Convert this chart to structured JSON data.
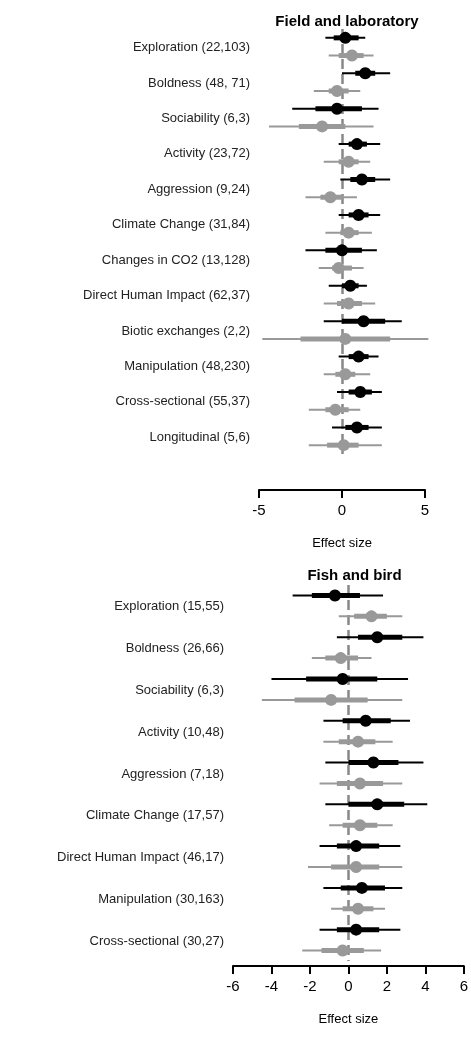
{
  "chart_data": [
    {
      "type": "box",
      "title": "Field and laboratory",
      "xlabel": "Effect size",
      "orientation": "horizontal",
      "categories": [
        "Exploration (22,103)",
        "Boldness (48, 71)",
        "Sociability (6,3)",
        "Activity (23,72)",
        "Aggression (9,24)",
        "Climate Change (31,84)",
        "Changes in CO2 (13,128)",
        "Direct Human Impact (62,37)",
        "Biotic exchanges (2,2)",
        "Manipulation (48,230)",
        "Cross-sectional (55,37)",
        "Longitudinal (5,6)"
      ],
      "series": [
        {
          "color": "#000000",
          "boxes": [
            {
              "low": -1.0,
              "q1": -0.5,
              "median": 0.2,
              "q3": 1.0,
              "high": 1.4
            },
            {
              "low": 0,
              "q1": 0.8,
              "median": 1.4,
              "q3": 2.0,
              "high": 2.9
            },
            {
              "low": -3.0,
              "q1": -1.6,
              "median": -0.3,
              "q3": 1.2,
              "high": 2.2
            },
            {
              "low": -0.2,
              "q1": 0.4,
              "median": 0.9,
              "q3": 1.5,
              "high": 2.3
            },
            {
              "low": -0.1,
              "q1": 0.5,
              "median": 1.2,
              "q3": 2.0,
              "high": 2.9
            },
            {
              "low": -0.2,
              "q1": 0.4,
              "median": 1.0,
              "q3": 1.6,
              "high": 2.3
            },
            {
              "low": -2.2,
              "q1": -1.0,
              "median": 0.0,
              "q3": 1.2,
              "high": 2.1
            },
            {
              "low": -0.8,
              "q1": 0.0,
              "median": 0.5,
              "q3": 1.0,
              "high": 1.5
            },
            {
              "low": -1.1,
              "q1": 0.0,
              "median": 1.3,
              "q3": 2.6,
              "high": 3.6
            },
            {
              "low": -0.2,
              "q1": 0.4,
              "median": 1.0,
              "q3": 1.6,
              "high": 2.2
            },
            {
              "low": -0.3,
              "q1": 0.4,
              "median": 1.1,
              "q3": 1.8,
              "high": 2.4
            },
            {
              "low": -0.6,
              "q1": 0.2,
              "median": 0.9,
              "q3": 1.6,
              "high": 2.4
            }
          ]
        },
        {
          "color": "#999999",
          "boxes": [
            {
              "low": -0.8,
              "q1": -0.2,
              "median": 0.6,
              "q3": 1.3,
              "high": 1.9
            },
            {
              "low": -1.7,
              "q1": -0.8,
              "median": -0.3,
              "q3": 0.4,
              "high": 1.1
            },
            {
              "low": -4.4,
              "q1": -2.6,
              "median": -1.2,
              "q3": 0.2,
              "high": 1.9
            },
            {
              "low": -1.1,
              "q1": -0.2,
              "median": 0.4,
              "q3": 1.0,
              "high": 1.7
            },
            {
              "low": -2.2,
              "q1": -1.3,
              "median": -0.7,
              "q3": 0.1,
              "high": 0.9
            },
            {
              "low": -1.0,
              "q1": -0.1,
              "median": 0.4,
              "q3": 1.0,
              "high": 1.8
            },
            {
              "low": -1.4,
              "q1": -0.6,
              "median": -0.2,
              "q3": 0.6,
              "high": 1.3
            },
            {
              "low": -1.1,
              "q1": -0.3,
              "median": 0.4,
              "q3": 1.2,
              "high": 2.0
            },
            {
              "low": -4.8,
              "q1": -2.5,
              "median": 0.2,
              "q3": 2.9,
              "high": 5.2
            },
            {
              "low": -1.1,
              "q1": -0.4,
              "median": 0.2,
              "q3": 0.8,
              "high": 1.7
            },
            {
              "low": -2.0,
              "q1": -1.0,
              "median": -0.4,
              "q3": 0.4,
              "high": 1.1
            },
            {
              "low": -2.0,
              "q1": -0.9,
              "median": 0.1,
              "q3": 1.0,
              "high": 2.4
            }
          ]
        }
      ],
      "xlim": [
        -5,
        5
      ],
      "xticks": [
        -5,
        0,
        5
      ],
      "ref_lines": [
        {
          "axis": "x",
          "value": 0,
          "color": "#888888",
          "line_style": "dashed"
        }
      ]
    },
    {
      "type": "box",
      "title": "Fish and bird",
      "xlabel": "Effect size",
      "orientation": "horizontal",
      "categories": [
        "Exploration (15,55)",
        "Boldness (26,66)",
        "Sociability (6,3)",
        "Activity (10,48)",
        "Aggression (7,18)",
        "Climate Change (17,57)",
        "Direct Human Impact (46,17)",
        "Manipulation (30,163)",
        "Cross-sectional (30,27)"
      ],
      "series": [
        {
          "color": "#000000",
          "boxes": [
            {
              "low": -2.9,
              "q1": -1.9,
              "median": -0.7,
              "q3": 0.6,
              "high": 1.8
            },
            {
              "low": -0.6,
              "q1": 0.5,
              "median": 1.5,
              "q3": 2.8,
              "high": 3.9
            },
            {
              "low": -4.0,
              "q1": -2.2,
              "median": -0.3,
              "q3": 1.5,
              "high": 3.1
            },
            {
              "low": -1.3,
              "q1": -0.3,
              "median": 0.9,
              "q3": 2.2,
              "high": 3.2
            },
            {
              "low": -1.2,
              "q1": 0.0,
              "median": 1.3,
              "q3": 2.6,
              "high": 3.9
            },
            {
              "low": -1.2,
              "q1": 0.0,
              "median": 1.5,
              "q3": 2.9,
              "high": 4.1
            },
            {
              "low": -1.5,
              "q1": -0.6,
              "median": 0.4,
              "q3": 1.6,
              "high": 2.7
            },
            {
              "low": -1.3,
              "q1": -0.4,
              "median": 0.7,
              "q3": 1.9,
              "high": 2.8
            },
            {
              "low": -1.5,
              "q1": -0.6,
              "median": 0.4,
              "q3": 1.6,
              "high": 2.7
            }
          ]
        },
        {
          "color": "#999999",
          "boxes": [
            {
              "low": -0.5,
              "q1": 0.3,
              "median": 1.2,
              "q3": 2.0,
              "high": 2.8
            },
            {
              "low": -1.9,
              "q1": -1.2,
              "median": -0.4,
              "q3": 0.5,
              "high": 1.2
            },
            {
              "low": -4.5,
              "q1": -2.8,
              "median": -0.9,
              "q3": 1.0,
              "high": 2.8
            },
            {
              "low": -1.3,
              "q1": -0.5,
              "median": 0.5,
              "q3": 1.4,
              "high": 2.3
            },
            {
              "low": -1.5,
              "q1": -0.6,
              "median": 0.6,
              "q3": 1.8,
              "high": 2.8
            },
            {
              "low": -1.0,
              "q1": -0.3,
              "median": 0.6,
              "q3": 1.5,
              "high": 2.3
            },
            {
              "low": -2.1,
              "q1": -0.9,
              "median": 0.4,
              "q3": 1.6,
              "high": 2.8
            },
            {
              "low": -0.9,
              "q1": -0.3,
              "median": 0.5,
              "q3": 1.3,
              "high": 1.9
            },
            {
              "low": -2.4,
              "q1": -1.4,
              "median": -0.3,
              "q3": 0.8,
              "high": 1.7
            }
          ]
        }
      ],
      "xlim": [
        -6,
        6
      ],
      "xticks": [
        -6,
        -4,
        -2,
        0,
        2,
        4,
        6
      ],
      "ref_lines": [
        {
          "axis": "x",
          "value": 0,
          "color": "#888888",
          "line_style": "dashed"
        }
      ]
    }
  ]
}
